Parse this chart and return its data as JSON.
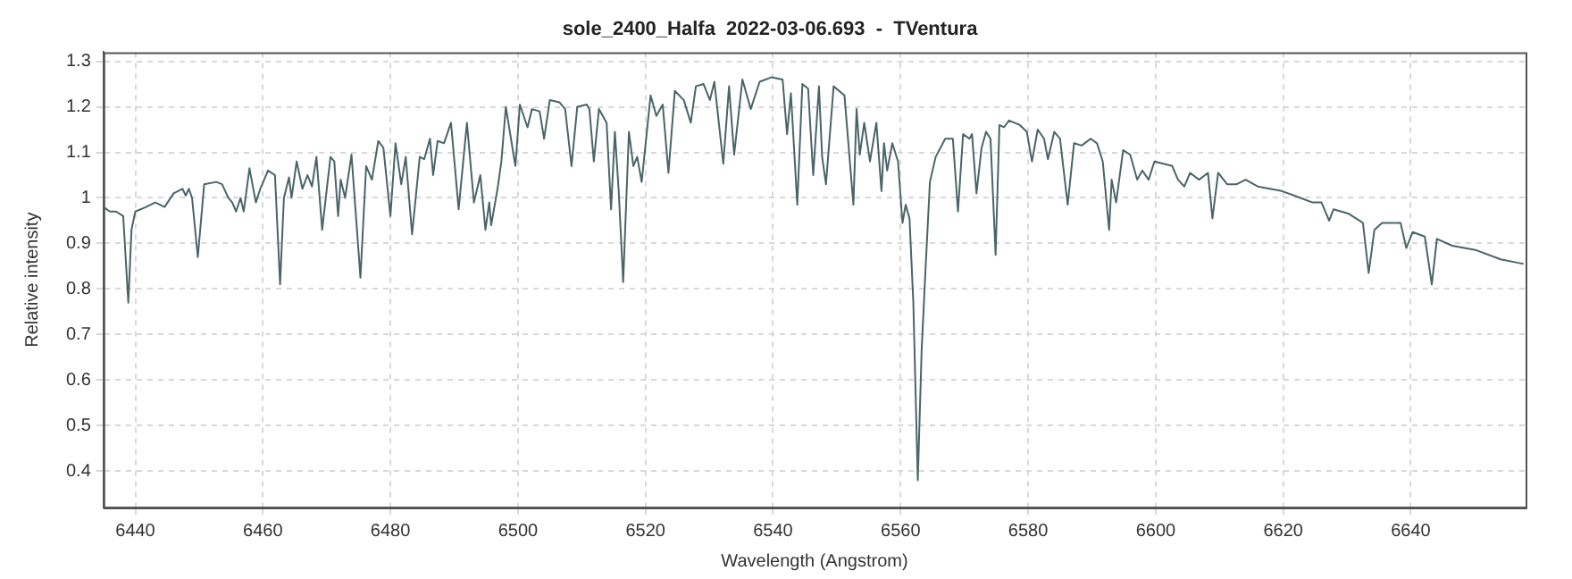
{
  "chart_data": {
    "type": "line",
    "title": "sole_2400_Halfa  2022-03-06.693  -  TVentura",
    "xlabel": "Wavelength (Angstrom)",
    "ylabel": "Relative intensity",
    "xlim": [
      6435,
      6658
    ],
    "xticks": [
      6440,
      6460,
      6480,
      6500,
      6520,
      6540,
      6560,
      6580,
      6600,
      6620,
      6640
    ],
    "ylim": [
      0.32,
      1.32
    ],
    "yticks": [
      0.4,
      0.5,
      0.6,
      0.7,
      0.8,
      0.9,
      1,
      1.1,
      1.2,
      1.3
    ],
    "grid": true,
    "legend": false,
    "marker": "none",
    "line_style": "solid",
    "series": [
      {
        "color": "#4a6468",
        "x": [
          6435,
          6436,
          6437,
          6438.1,
          6438.9,
          6439.4,
          6440,
          6441.7,
          6443.1,
          6444.6,
          6446,
          6447.4,
          6447.9,
          6448.4,
          6448.9,
          6449.8,
          6450.8,
          6452.7,
          6453.6,
          6454.6,
          6455.2,
          6455.8,
          6456.5,
          6457,
          6457.9,
          6458.9,
          6459.6,
          6460.8,
          6461.9,
          6462.7,
          6463.3,
          6464.1,
          6464.5,
          6465.3,
          6466.2,
          6467,
          6467.7,
          6468.4,
          6469.3,
          6470.6,
          6471.2,
          6471.8,
          6472.2,
          6472.9,
          6473.9,
          6475.3,
          6476.2,
          6477.1,
          6478.1,
          6478.9,
          6480,
          6480.8,
          6481.7,
          6482.4,
          6483.4,
          6484.6,
          6485.3,
          6486.2,
          6486.7,
          6487.4,
          6488.4,
          6489.5,
          6490.7,
          6492,
          6493.1,
          6494.1,
          6494.9,
          6495.5,
          6495.8,
          6496.8,
          6497.4,
          6498.1,
          6499.6,
          6500.3,
          6501.5,
          6502.2,
          6503.4,
          6504.1,
          6505,
          6506.5,
          6507.4,
          6508.4,
          6509.3,
          6510.8,
          6511.2,
          6511.9,
          6512.7,
          6513.9,
          6514.6,
          6515.2,
          6515.8,
          6516.5,
          6517.4,
          6518.1,
          6518.7,
          6519.4,
          6520.8,
          6521.7,
          6522.7,
          6523.6,
          6524.6,
          6526,
          6527.1,
          6527.9,
          6529.1,
          6530.1,
          6530.8,
          6532.2,
          6533.1,
          6533.9,
          6535.2,
          6536.5,
          6537.9,
          6539.8,
          6541.5,
          6542.2,
          6542.8,
          6543.8,
          6544.6,
          6545.5,
          6546.3,
          6547.2,
          6547.7,
          6548.3,
          6549.5,
          6551.2,
          6552.6,
          6553.1,
          6553.6,
          6554.3,
          6555.2,
          6556.2,
          6557,
          6557.4,
          6557.9,
          6558.7,
          6559.6,
          6560.3,
          6560.8,
          6561.4,
          6562,
          6562.7,
          6563.3,
          6563.9,
          6564.6,
          6565.5,
          6567,
          6568.2,
          6569,
          6569.8,
          6570.8,
          6571.2,
          6571.9,
          6572.7,
          6573.4,
          6574.1,
          6574.9,
          6575.5,
          6576.2,
          6577,
          6578.7,
          6579.8,
          6580.6,
          6581.5,
          6582.5,
          6583.1,
          6584.1,
          6585,
          6586.2,
          6587.2,
          6588.4,
          6589.8,
          6590.8,
          6591.7,
          6592.7,
          6593.1,
          6593.8,
          6594.9,
          6596,
          6597.1,
          6597.9,
          6598.9,
          6599.8,
          6601.2,
          6602.6,
          6603.5,
          6604.5,
          6605.4,
          6606.8,
          6608.2,
          6608.9,
          6609.8,
          6611.2,
          6612.7,
          6614.1,
          6616,
          6619.8,
          6622.7,
          6624.6,
          6626,
          6627.2,
          6627.9,
          6630.3,
          6632.5,
          6633.4,
          6634.3,
          6635.5,
          6638.4,
          6639.3,
          6640.3,
          6642.2,
          6643.3,
          6644.1,
          6646.5,
          6650.3,
          6654.1,
          6657.7
        ],
        "values": [
          0.98,
          0.97,
          0.97,
          0.96,
          0.77,
          0.93,
          0.97,
          0.98,
          0.99,
          0.98,
          1.01,
          1.02,
          1.005,
          1.02,
          1,
          0.87,
          1.03,
          1.035,
          1.03,
          1,
          0.99,
          0.97,
          1,
          0.97,
          1.065,
          0.99,
          1.02,
          1.06,
          1.05,
          0.81,
          1,
          1.045,
          1,
          1.08,
          1.02,
          1.05,
          1.025,
          1.09,
          0.93,
          1.09,
          1.08,
          0.96,
          1.04,
          1,
          1.095,
          0.825,
          1.07,
          1.04,
          1.125,
          1.11,
          0.96,
          1.12,
          1.03,
          1.09,
          0.92,
          1.09,
          1.085,
          1.13,
          1.05,
          1.125,
          1.12,
          1.165,
          0.975,
          1.165,
          0.99,
          1.05,
          0.93,
          0.99,
          0.94,
          1.02,
          1.08,
          1.2,
          1.07,
          1.205,
          1.155,
          1.195,
          1.19,
          1.13,
          1.215,
          1.21,
          1.195,
          1.07,
          1.2,
          1.205,
          1.195,
          1.08,
          1.195,
          1.165,
          0.975,
          1.145,
          1.015,
          0.815,
          1.145,
          1.07,
          1.09,
          1.035,
          1.225,
          1.18,
          1.205,
          1.055,
          1.235,
          1.215,
          1.165,
          1.245,
          1.25,
          1.215,
          1.255,
          1.075,
          1.245,
          1.095,
          1.26,
          1.195,
          1.255,
          1.265,
          1.26,
          1.14,
          1.23,
          0.985,
          1.25,
          1.24,
          1.05,
          1.245,
          1.09,
          1.03,
          1.245,
          1.225,
          0.985,
          1.195,
          1.095,
          1.165,
          1.08,
          1.165,
          1.015,
          1.12,
          1.06,
          1.12,
          1.08,
          0.945,
          0.985,
          0.955,
          0.77,
          0.38,
          0.665,
          0.84,
          1.035,
          1.09,
          1.13,
          1.13,
          0.97,
          1.14,
          1.13,
          1.14,
          1.01,
          1.11,
          1.145,
          1.13,
          0.875,
          1.16,
          1.155,
          1.17,
          1.16,
          1.145,
          1.08,
          1.15,
          1.13,
          1.085,
          1.145,
          1.13,
          0.985,
          1.12,
          1.115,
          1.13,
          1.12,
          1.08,
          0.93,
          1.04,
          0.99,
          1.105,
          1.095,
          1.04,
          1.06,
          1.04,
          1.08,
          1.075,
          1.07,
          1.04,
          1.025,
          1.055,
          1.04,
          1.055,
          0.955,
          1.055,
          1.03,
          1.03,
          1.04,
          1.025,
          1.015,
          1,
          0.99,
          0.99,
          0.95,
          0.975,
          0.965,
          0.945,
          0.835,
          0.93,
          0.945,
          0.945,
          0.89,
          0.925,
          0.915,
          0.81,
          0.91,
          0.895,
          0.885,
          0.865,
          0.855
        ]
      }
    ]
  }
}
